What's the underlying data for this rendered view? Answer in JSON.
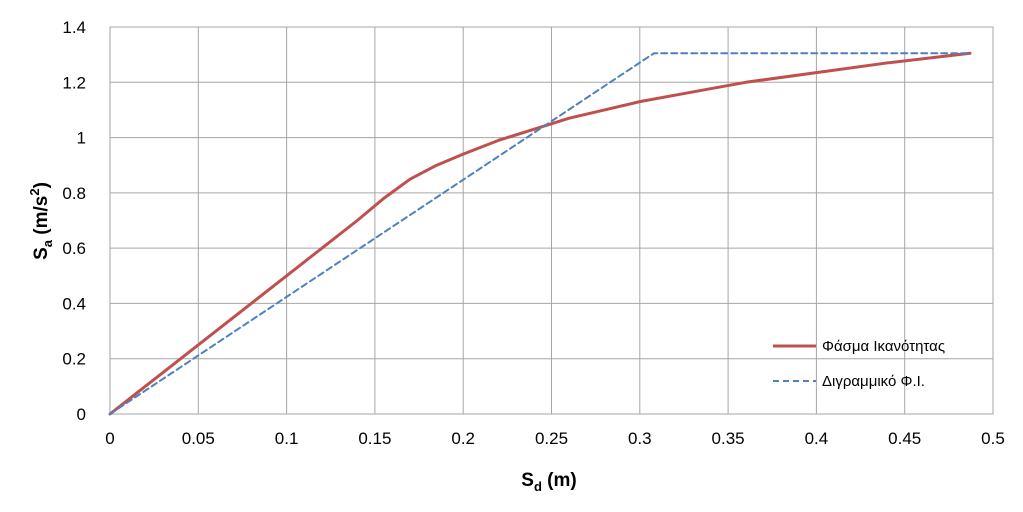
{
  "chart_data": {
    "type": "line",
    "title": "",
    "xlabel": {
      "main": "S",
      "sub": "d",
      "rest": " (m)"
    },
    "ylabel": {
      "main": "S",
      "sub": "a",
      "rest": " (m/s",
      "sup": "2",
      "end": ")"
    },
    "xlim": [
      0,
      0.5
    ],
    "ylim": [
      0,
      1.4
    ],
    "x_ticks": [
      "0",
      "0.05",
      "0.1",
      "0.15",
      "0.2",
      "0.25",
      "0.3",
      "0.35",
      "0.4",
      "0.45",
      "0.5"
    ],
    "y_ticks": [
      "0",
      "0.2",
      "0.4",
      "0.6",
      "0.8",
      "1",
      "1.2",
      "1.4"
    ],
    "grid": true,
    "legend_position": "bottom-right",
    "series": [
      {
        "name": "Φάσμα Ικανότητας",
        "style": "solid",
        "color": "#c0504d",
        "x": [
          0,
          0.02,
          0.04,
          0.06,
          0.08,
          0.1,
          0.12,
          0.14,
          0.155,
          0.17,
          0.185,
          0.2,
          0.22,
          0.24,
          0.26,
          0.28,
          0.3,
          0.33,
          0.36,
          0.4,
          0.44,
          0.487
        ],
        "y": [
          0,
          0.1,
          0.2,
          0.3,
          0.4,
          0.5,
          0.6,
          0.7,
          0.78,
          0.85,
          0.9,
          0.94,
          0.99,
          1.03,
          1.07,
          1.1,
          1.13,
          1.165,
          1.2,
          1.235,
          1.27,
          1.305
        ]
      },
      {
        "name": "Διγραμμικό Φ.Ι.",
        "style": "dashed",
        "color": "#4f81bd",
        "x": [
          0,
          0.308,
          0.487
        ],
        "y": [
          0,
          1.305,
          1.305
        ]
      }
    ]
  }
}
